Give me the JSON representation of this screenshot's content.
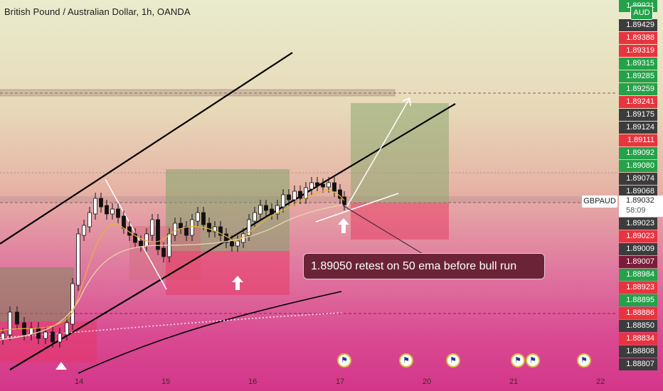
{
  "header": {
    "title": "British Pound / Australian Dollar, 1h, OANDA"
  },
  "price_axis": {
    "currency_badge": "AUD",
    "symbol_label": "GBPAUD",
    "current_price": "1.89032",
    "countdown": "58:09",
    "labels": [
      {
        "text": "1.89921",
        "color": "#24a249"
      },
      {
        "text": "1.89429",
        "color": "#3c3c3c"
      },
      {
        "text": "1.89388",
        "color": "#e8343f"
      },
      {
        "text": "1.89319",
        "color": "#e8343f"
      },
      {
        "text": "1.89315",
        "color": "#24a249"
      },
      {
        "text": "1.89285",
        "color": "#24a249"
      },
      {
        "text": "1.89259",
        "color": "#24a249"
      },
      {
        "text": "1.89241",
        "color": "#e8343f"
      },
      {
        "text": "1.89175",
        "color": "#3c3c3c"
      },
      {
        "text": "1.89124",
        "color": "#3c3c3c"
      },
      {
        "text": "1.89111",
        "color": "#e8343f"
      },
      {
        "text": "1.89092",
        "color": "#24a249"
      },
      {
        "text": "1.89080",
        "color": "#24a249"
      },
      {
        "text": "1.89074",
        "color": "#3c3c3c"
      },
      {
        "text": "1.89068",
        "color": "#3c3c3c"
      },
      {
        "text": "1.89023",
        "color": "#3c3c3c"
      },
      {
        "text": "1.89023",
        "color": "#e8343f"
      },
      {
        "text": "1.89009",
        "color": "#3c3c3c"
      },
      {
        "text": "1.89007",
        "color": "#7a1c3a"
      },
      {
        "text": "1.88984",
        "color": "#24a249"
      },
      {
        "text": "1.88923",
        "color": "#e8343f"
      },
      {
        "text": "1.88895",
        "color": "#24a249"
      },
      {
        "text": "1.88886",
        "color": "#e8343f"
      },
      {
        "text": "1.88850",
        "color": "#3c3c3c"
      },
      {
        "text": "1.88834",
        "color": "#e8343f"
      },
      {
        "text": "1.88808",
        "color": "#3c3c3c"
      },
      {
        "text": "1.88807",
        "color": "#3c3c3c"
      }
    ]
  },
  "time_axis": {
    "labels": [
      "14",
      "15",
      "16",
      "17",
      "20",
      "21",
      "22"
    ]
  },
  "annotation": {
    "text": "1.89050 retest on 50 ema before bull run"
  },
  "chart_data": {
    "type": "candlestick",
    "title": "British Pound / Australian Dollar, 1h, OANDA",
    "symbol": "GBPAUD",
    "timeframe": "1h",
    "x_ticks": [
      "14",
      "15",
      "16",
      "17",
      "20",
      "21",
      "22"
    ],
    "current_price": 1.89032,
    "callout": "1.89050 retest on 50 ema before bull run",
    "series": [
      {
        "name": "EMA fast",
        "color": "#e3b437"
      },
      {
        "name": "EMA 50",
        "color": "#d8c9a0"
      },
      {
        "name": "EMA slow",
        "color": "#000000"
      },
      {
        "name": "EMA 200",
        "color": "#f2e6ee"
      }
    ],
    "colors": {
      "up": "#ffffff",
      "down": "#000000",
      "buy_zone": "#7fa36a",
      "sell_zone": "#e8345f"
    }
  }
}
